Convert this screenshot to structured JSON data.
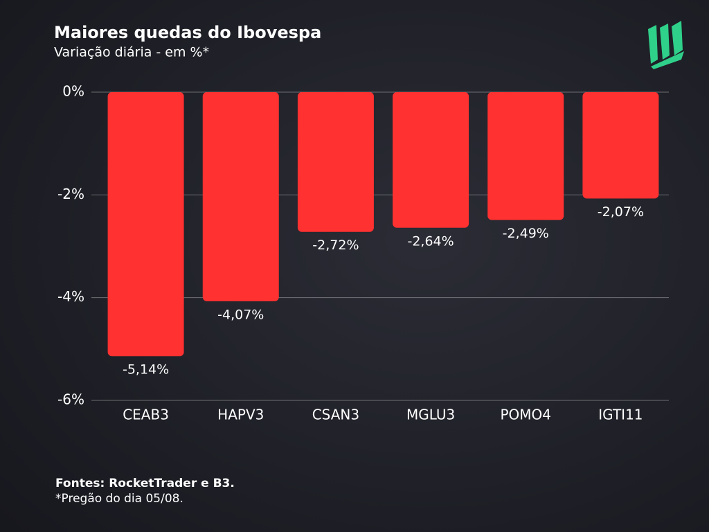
{
  "chart_data": {
    "type": "bar",
    "title": "Maiores quedas do Ibovespa",
    "subtitle": "Variação diária - em %*",
    "categories": [
      "CEAB3",
      "HAPV3",
      "CSAN3",
      "MGLU3",
      "POMO4",
      "IGTI11"
    ],
    "values": [
      -5.14,
      -4.07,
      -2.72,
      -2.64,
      -2.49,
      -2.07
    ],
    "value_labels": [
      "-5,14%",
      "-4,07%",
      "-2,72%",
      "-2,64%",
      "-2,49%",
      "-2,07%"
    ],
    "color": "#ff3131",
    "ylim": [
      -6,
      0
    ],
    "yticks": [
      {
        "value": 0,
        "label": "0%"
      },
      {
        "value": -2,
        "label": "-2%"
      },
      {
        "value": -4,
        "label": "-4%"
      },
      {
        "value": -6,
        "label": "-6%"
      }
    ],
    "grid": true,
    "source": "Fontes: RocketTrader e B3.",
    "note": "*Pregão do dia 05/08."
  }
}
